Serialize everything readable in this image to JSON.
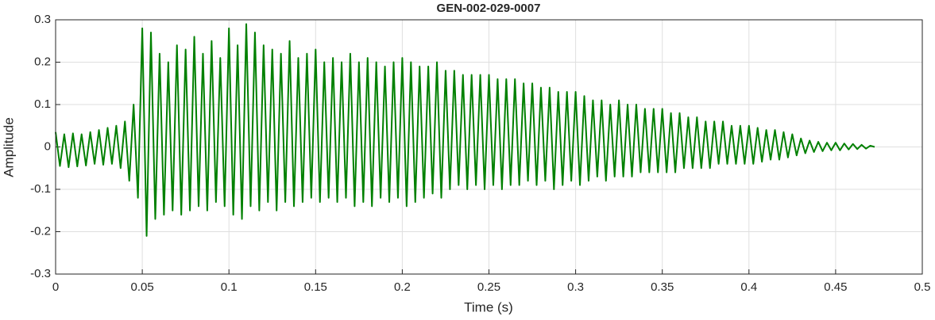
{
  "chart_data": {
    "type": "line",
    "title": "GEN-002-029-0007",
    "xlabel": "Time (s)",
    "ylabel": "Amplitude",
    "x": [
      0,
      0.0025,
      0.005,
      0.0075,
      0.01,
      0.0125,
      0.015,
      0.0175,
      0.02,
      0.0225,
      0.025,
      0.0275,
      0.03,
      0.0325,
      0.035,
      0.0375,
      0.04,
      0.0425,
      0.045,
      0.0475,
      0.05,
      0.0525,
      0.055,
      0.0575,
      0.06,
      0.0625,
      0.065,
      0.0675,
      0.07,
      0.0725,
      0.075,
      0.0775,
      0.08,
      0.0825,
      0.085,
      0.0875,
      0.09,
      0.0925,
      0.095,
      0.0975,
      0.1,
      0.1025,
      0.105,
      0.1075,
      0.11,
      0.1125,
      0.115,
      0.1175,
      0.12,
      0.1225,
      0.125,
      0.1275,
      0.13,
      0.1325,
      0.135,
      0.1375,
      0.14,
      0.1425,
      0.145,
      0.1475,
      0.15,
      0.1525,
      0.155,
      0.1575,
      0.16,
      0.1625,
      0.165,
      0.1675,
      0.17,
      0.1725,
      0.175,
      0.1775,
      0.18,
      0.1825,
      0.185,
      0.1875,
      0.19,
      0.1925,
      0.195,
      0.1975,
      0.2,
      0.2025,
      0.205,
      0.2075,
      0.21,
      0.2125,
      0.215,
      0.2175,
      0.22,
      0.2225,
      0.225,
      0.2275,
      0.23,
      0.2325,
      0.235,
      0.2375,
      0.24,
      0.2425,
      0.245,
      0.2475,
      0.25,
      0.2525,
      0.255,
      0.2575,
      0.26,
      0.2625,
      0.265,
      0.2675,
      0.27,
      0.2725,
      0.275,
      0.2775,
      0.28,
      0.2825,
      0.285,
      0.2875,
      0.29,
      0.2925,
      0.295,
      0.2975,
      0.3,
      0.3025,
      0.305,
      0.3075,
      0.31,
      0.3125,
      0.315,
      0.3175,
      0.32,
      0.3225,
      0.325,
      0.3275,
      0.33,
      0.3325,
      0.335,
      0.3375,
      0.34,
      0.3425,
      0.345,
      0.3475,
      0.35,
      0.3525,
      0.355,
      0.3575,
      0.36,
      0.3625,
      0.365,
      0.3675,
      0.37,
      0.3725,
      0.375,
      0.3775,
      0.38,
      0.3825,
      0.385,
      0.3875,
      0.39,
      0.3925,
      0.395,
      0.3975,
      0.4,
      0.4025,
      0.405,
      0.4075,
      0.41,
      0.4125,
      0.415,
      0.4175,
      0.42,
      0.4225,
      0.425,
      0.4275,
      0.43,
      0.4325,
      0.435,
      0.4375,
      0.44,
      0.4425,
      0.445,
      0.4475,
      0.45,
      0.4525,
      0.455,
      0.4575,
      0.46,
      0.4625,
      0.465,
      0.4675,
      0.47,
      0.4725
    ],
    "series": [
      {
        "color": "#008000",
        "values": [
          0.035,
          -0.045,
          0.03,
          -0.048,
          0.032,
          -0.046,
          0.03,
          -0.044,
          0.035,
          -0.04,
          0.04,
          -0.042,
          0.045,
          -0.04,
          0.05,
          -0.05,
          0.06,
          -0.08,
          0.1,
          -0.12,
          0.28,
          -0.21,
          0.27,
          -0.17,
          0.22,
          -0.16,
          0.2,
          -0.15,
          0.24,
          -0.16,
          0.23,
          -0.15,
          0.26,
          -0.14,
          0.22,
          -0.15,
          0.25,
          -0.13,
          0.21,
          -0.14,
          0.28,
          -0.16,
          0.24,
          -0.17,
          0.29,
          -0.14,
          0.27,
          -0.15,
          0.24,
          -0.13,
          0.23,
          -0.15,
          0.22,
          -0.13,
          0.25,
          -0.14,
          0.21,
          -0.13,
          0.22,
          -0.12,
          0.23,
          -0.13,
          0.2,
          -0.12,
          0.21,
          -0.13,
          0.2,
          -0.12,
          0.22,
          -0.14,
          0.2,
          -0.13,
          0.21,
          -0.14,
          0.2,
          -0.12,
          0.19,
          -0.13,
          0.2,
          -0.12,
          0.21,
          -0.14,
          0.2,
          -0.13,
          0.19,
          -0.12,
          0.19,
          -0.11,
          0.2,
          -0.12,
          0.18,
          -0.1,
          0.18,
          -0.09,
          0.17,
          -0.1,
          0.17,
          -0.09,
          0.17,
          -0.1,
          0.17,
          -0.09,
          0.16,
          -0.1,
          0.16,
          -0.09,
          0.16,
          -0.09,
          0.15,
          -0.08,
          0.15,
          -0.09,
          0.14,
          -0.08,
          0.14,
          -0.1,
          0.13,
          -0.09,
          0.13,
          -0.08,
          0.13,
          -0.09,
          0.12,
          -0.08,
          0.11,
          -0.07,
          0.11,
          -0.08,
          0.1,
          -0.07,
          0.11,
          -0.07,
          0.1,
          -0.07,
          0.1,
          -0.06,
          0.09,
          -0.06,
          0.09,
          -0.06,
          0.09,
          -0.06,
          0.08,
          -0.06,
          0.08,
          -0.05,
          0.07,
          -0.05,
          0.07,
          -0.05,
          0.06,
          -0.05,
          0.06,
          -0.04,
          0.06,
          -0.04,
          0.05,
          -0.04,
          0.05,
          -0.04,
          0.05,
          -0.04,
          0.045,
          -0.035,
          0.04,
          -0.03,
          0.04,
          -0.03,
          0.035,
          -0.025,
          0.03,
          -0.02,
          0.02,
          -0.015,
          0.015,
          -0.012,
          0.012,
          -0.01,
          0.01,
          -0.008,
          0.01,
          -0.008,
          0.008,
          -0.006,
          0.007,
          -0.005,
          0.005,
          -0.004,
          0.003,
          0
        ]
      }
    ],
    "xlim": [
      0,
      0.5
    ],
    "xticks": [
      0,
      0.05,
      0.1,
      0.15,
      0.2,
      0.25,
      0.3,
      0.35,
      0.4,
      0.45,
      0.5
    ],
    "ylim": [
      -0.3,
      0.3
    ],
    "yticks": [
      -0.3,
      -0.2,
      -0.1,
      0,
      0.1,
      0.2,
      0.3
    ],
    "grid": true
  }
}
